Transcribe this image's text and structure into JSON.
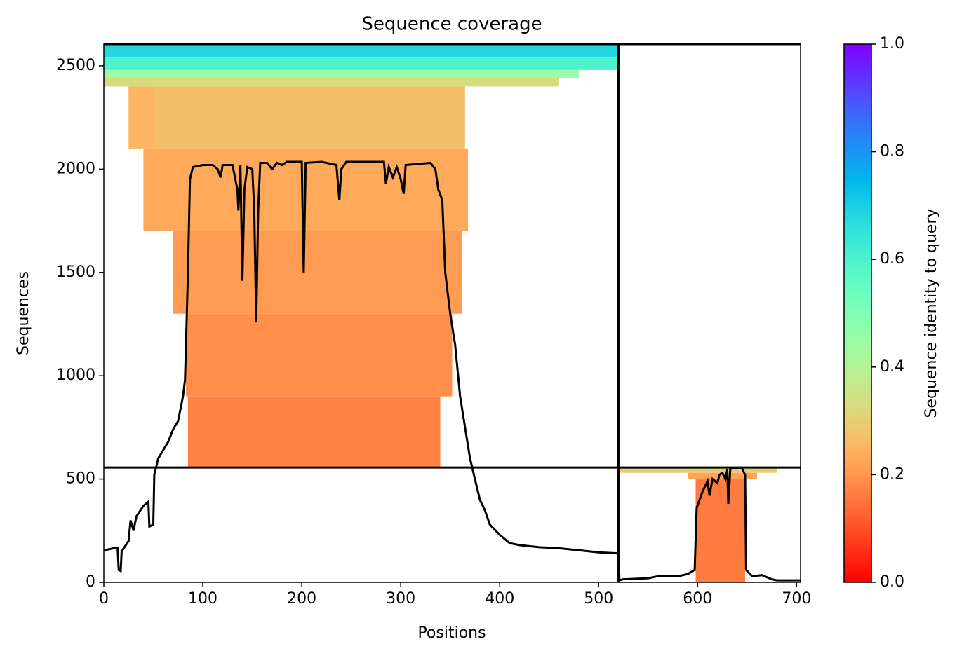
{
  "chart_data": {
    "type": "coverage",
    "title": "Sequence coverage",
    "xlabel": "Positions",
    "ylabel": "Sequences",
    "xlim": [
      0,
      704
    ],
    "ylim": [
      0,
      2605
    ],
    "xticks": [
      0,
      100,
      200,
      300,
      400,
      500,
      600,
      700
    ],
    "yticks": [
      0,
      500,
      1000,
      1500,
      2000,
      2500
    ],
    "dividers_x": [
      520
    ],
    "dividers_y": [
      556
    ],
    "colormap": "rainbow_r",
    "colorbar": {
      "label": "Sequence identity to query",
      "clim": [
        0,
        1
      ],
      "ticks": [
        {
          "value": 0,
          "label": "0.0"
        },
        0.2,
        0.4,
        0.6,
        0.8,
        {
          "value": 1,
          "label": "1.0"
        }
      ]
    },
    "blocks": [
      {
        "x0": 0,
        "x1": 520,
        "y0": 2540,
        "y1": 2605,
        "identity": 0.68
      },
      {
        "x0": 0,
        "x1": 520,
        "y0": 2480,
        "y1": 2540,
        "identity": 0.6
      },
      {
        "x0": 0,
        "x1": 480,
        "y0": 2440,
        "y1": 2480,
        "identity": 0.45
      },
      {
        "x0": 0,
        "x1": 460,
        "y0": 2400,
        "y1": 2440,
        "identity": 0.33
      },
      {
        "x0": 50,
        "x1": 365,
        "y0": 2100,
        "y1": 2400,
        "identity": 0.27
      },
      {
        "x0": 25,
        "x1": 50,
        "y0": 2100,
        "y1": 2400,
        "identity": 0.25
      },
      {
        "x0": 40,
        "x1": 368,
        "y0": 1700,
        "y1": 2100,
        "identity": 0.23
      },
      {
        "x0": 70,
        "x1": 362,
        "y0": 1300,
        "y1": 1700,
        "identity": 0.21
      },
      {
        "x0": 83,
        "x1": 352,
        "y0": 900,
        "y1": 1300,
        "identity": 0.19
      },
      {
        "x0": 85,
        "x1": 340,
        "y0": 556,
        "y1": 900,
        "identity": 0.17
      },
      {
        "x0": 520,
        "x1": 680,
        "y0": 530,
        "y1": 556,
        "identity": 0.3
      },
      {
        "x0": 590,
        "x1": 660,
        "y0": 500,
        "y1": 530,
        "identity": 0.22
      },
      {
        "x0": 598,
        "x1": 648,
        "y0": 0,
        "y1": 500,
        "identity": 0.16
      }
    ],
    "line": {
      "x": [
        0,
        10,
        14,
        15,
        17,
        18,
        25,
        27,
        30,
        33,
        40,
        45,
        46,
        50,
        51,
        55,
        65,
        70,
        75,
        80,
        82,
        85,
        87,
        90,
        100,
        110,
        115,
        118,
        120,
        130,
        135,
        136,
        138,
        140,
        142,
        145,
        150,
        152,
        154,
        156,
        158,
        165,
        170,
        175,
        180,
        185,
        200,
        202,
        204,
        220,
        235,
        238,
        240,
        245,
        260,
        283,
        285,
        288,
        292,
        296,
        300,
        303,
        305,
        330,
        335,
        338,
        342,
        345,
        350,
        355,
        360,
        365,
        370,
        375,
        380,
        385,
        390,
        400,
        410,
        420,
        440,
        460,
        480,
        500,
        520,
        521,
        525,
        550,
        560,
        580,
        590,
        597,
        599,
        605,
        610,
        612,
        615,
        620,
        622,
        625,
        628,
        630,
        631,
        633,
        640,
        645,
        648,
        649,
        655,
        665,
        675,
        680,
        700,
        704
      ],
      "y": [
        155,
        165,
        165,
        60,
        55,
        150,
        200,
        300,
        250,
        320,
        370,
        390,
        270,
        280,
        520,
        600,
        680,
        740,
        780,
        900,
        980,
        1500,
        1950,
        2010,
        2020,
        2020,
        2000,
        1960,
        2020,
        2020,
        1900,
        1800,
        2020,
        1460,
        1900,
        2010,
        2000,
        1800,
        1260,
        1800,
        2030,
        2030,
        2000,
        2030,
        2020,
        2035,
        2035,
        1500,
        2030,
        2035,
        2020,
        1850,
        2000,
        2035,
        2035,
        2035,
        1930,
        2010,
        1960,
        2010,
        1950,
        1880,
        2020,
        2030,
        2000,
        1900,
        1850,
        1500,
        1300,
        1150,
        900,
        750,
        600,
        500,
        400,
        350,
        280,
        230,
        190,
        180,
        170,
        165,
        155,
        145,
        140,
        10,
        15,
        20,
        30,
        30,
        40,
        60,
        360,
        440,
        490,
        420,
        500,
        480,
        520,
        530,
        500,
        545,
        380,
        550,
        555,
        550,
        520,
        60,
        30,
        35,
        15,
        10,
        10,
        10
      ]
    }
  }
}
